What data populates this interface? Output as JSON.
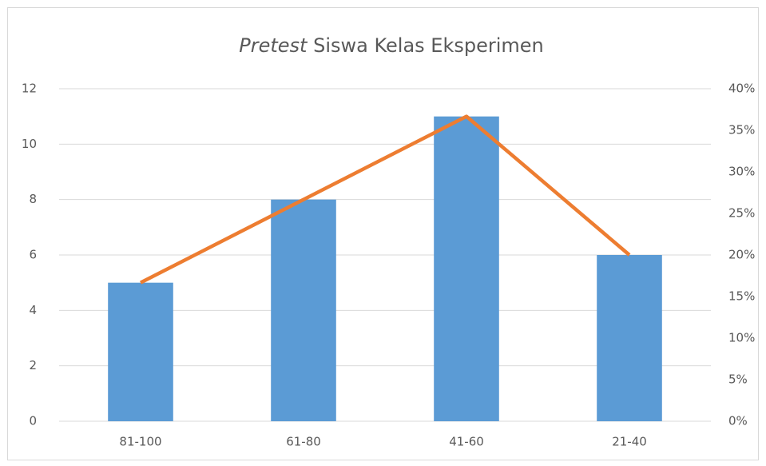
{
  "chart_data": {
    "type": "bar",
    "title": [
      "Pretest",
      "Siswa Kelas Eksperimen"
    ],
    "categories": [
      "81-100",
      "61-80",
      "41-60",
      "21-40"
    ],
    "series": [
      {
        "type": "bar",
        "color": "#5b9bd5",
        "values": [
          5,
          8,
          11,
          6
        ]
      },
      {
        "type": "line",
        "axis": "y2",
        "color": "#ed7d31",
        "values": [
          16.67,
          26.67,
          36.67,
          20
        ]
      }
    ],
    "ylim": [
      0,
      12
    ],
    "yticks": [
      0,
      2,
      4,
      6,
      8,
      10,
      12
    ],
    "y2lim": [
      0,
      40
    ],
    "y2ticks": [
      {
        "value": 0,
        "label": "0%"
      },
      {
        "value": 5,
        "label": "5%"
      },
      {
        "value": 10,
        "label": "10%"
      },
      {
        "value": 15,
        "label": "15%"
      },
      {
        "value": 20,
        "label": "20%"
      },
      {
        "value": 25,
        "label": "25%"
      },
      {
        "value": 30,
        "label": "30%"
      },
      {
        "value": 35,
        "label": "35%"
      },
      {
        "value": 40,
        "label": "40%"
      }
    ],
    "grid": true
  }
}
